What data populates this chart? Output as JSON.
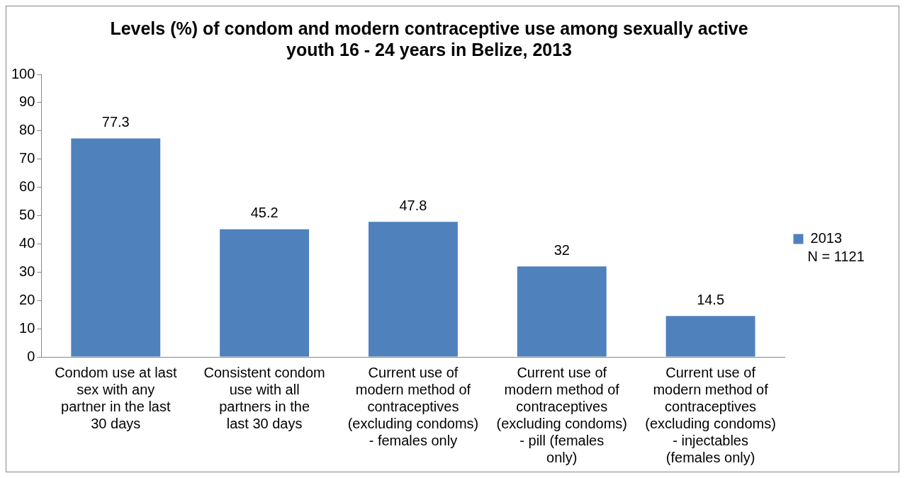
{
  "chart_data": {
    "type": "bar",
    "title": "Levels (%) of condom and modern contraceptive use among sexually active youth 16 - 24 years in Belize, 2013",
    "categories": [
      "Condom use at last sex with any partner in the last 30 days",
      "Consistent condom use with all partners in the last 30 days",
      "Current use of modern method of contraceptives (excluding condoms) - females only",
      "Current use of modern method of contraceptives (excluding condoms) - pill (females only)",
      "Current use of modern method of contraceptives (excluding condoms) - injectables (females only)"
    ],
    "series": [
      {
        "name": "2013",
        "color": "#4f81bd",
        "values": [
          77.3,
          45.2,
          47.8,
          32,
          14.5
        ]
      }
    ],
    "ylim": [
      0,
      100
    ],
    "yticks": [
      0,
      10,
      20,
      30,
      40,
      50,
      60,
      70,
      80,
      90,
      100
    ],
    "grid": false,
    "legend": "right",
    "data_labels": true,
    "annotations": [
      "N = 1121"
    ]
  }
}
